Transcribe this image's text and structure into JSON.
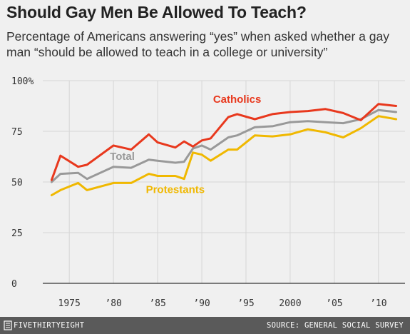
{
  "header": {
    "title": "Should Gay Men Be Allowed To Teach?",
    "subtitle": "Percentage of Americans answering “yes” when asked whether a gay man “should be allowed to teach in a college or university”"
  },
  "footer": {
    "brand": "FIVETHIRTYEIGHT",
    "source": "SOURCE: GENERAL SOCIAL SURVEY"
  },
  "chart_data": {
    "type": "line",
    "ylim": [
      0,
      100
    ],
    "xlim": [
      1972,
      2013
    ],
    "grid": true,
    "y_ticks": [
      {
        "value": 0,
        "label": "0"
      },
      {
        "value": 25,
        "label": "25"
      },
      {
        "value": 50,
        "label": "50"
      },
      {
        "value": 75,
        "label": "75"
      },
      {
        "value": 100,
        "label": "100%"
      }
    ],
    "x_ticks": [
      {
        "value": 1975,
        "label": "1975"
      },
      {
        "value": 1980,
        "label": "’80"
      },
      {
        "value": 1985,
        "label": "’85"
      },
      {
        "value": 1990,
        "label": "’90"
      },
      {
        "value": 1995,
        "label": "’95"
      },
      {
        "value": 2000,
        "label": "2000"
      },
      {
        "value": 2005,
        "label": "’05"
      },
      {
        "value": 2010,
        "label": "’10"
      }
    ],
    "series": [
      {
        "name": "Catholics",
        "color": "#e8381d",
        "label_x": 1994,
        "label_y": 89,
        "x": [
          1973,
          1974,
          1976,
          1977,
          1980,
          1982,
          1984,
          1985,
          1987,
          1988,
          1989,
          1990,
          1991,
          1993,
          1994,
          1996,
          1998,
          2000,
          2002,
          2004,
          2006,
          2008,
          2010,
          2012
        ],
        "y": [
          51,
          63,
          57.5,
          58.5,
          68,
          66,
          73.5,
          69.5,
          67,
          70,
          67.5,
          70.5,
          71.5,
          82,
          83.5,
          81,
          83.5,
          84.5,
          85,
          86,
          84,
          80.5,
          88.5,
          87.5
        ]
      },
      {
        "name": "Total",
        "color": "#999999",
        "label_x": 1981,
        "label_y": 61,
        "x": [
          1973,
          1974,
          1976,
          1977,
          1980,
          1982,
          1984,
          1985,
          1987,
          1988,
          1989,
          1990,
          1991,
          1993,
          1994,
          1996,
          1998,
          2000,
          2002,
          2004,
          2006,
          2008,
          2010,
          2012
        ],
        "y": [
          50,
          54,
          54.5,
          51.5,
          57.5,
          57,
          61,
          60.5,
          59.5,
          60,
          66.5,
          68,
          66,
          72,
          73,
          77,
          77.5,
          79.5,
          80,
          79.5,
          79,
          81,
          85.5,
          84.5
        ]
      },
      {
        "name": "Protestants",
        "color": "#f0b800",
        "label_x": 1987,
        "label_y": 44.5,
        "x": [
          1973,
          1974,
          1976,
          1977,
          1980,
          1982,
          1984,
          1985,
          1987,
          1988,
          1989,
          1990,
          1991,
          1993,
          1994,
          1996,
          1998,
          2000,
          2002,
          2004,
          2006,
          2008,
          2010,
          2012
        ],
        "y": [
          43.5,
          46,
          49.5,
          46,
          49.5,
          49.5,
          54,
          53,
          53,
          51.5,
          64.5,
          63.5,
          60.5,
          66,
          66,
          73,
          72.5,
          73.5,
          76,
          74.5,
          72,
          76.5,
          82.5,
          81
        ]
      }
    ]
  }
}
